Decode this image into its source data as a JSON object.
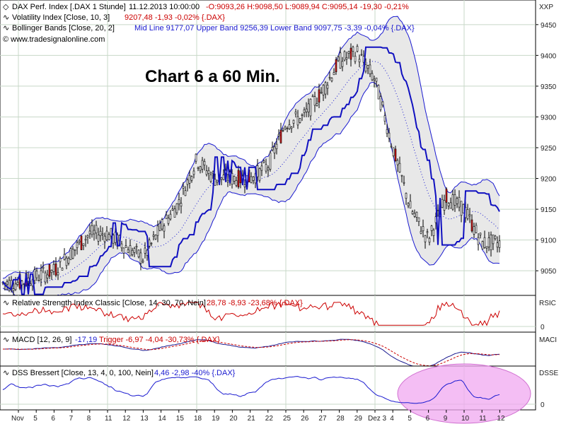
{
  "header": {
    "line1": {
      "icon": "chart-icon",
      "name": "DAX Perf. Index [.DAX  1 Stunde]",
      "datetime": "11.12.2013 10:00:00",
      "ohlc": "-O:9093,26 H:9098,50 L:9089,94 C:9095,14 -19,30 -0,21%"
    },
    "line2": {
      "icon": "indicator-icon",
      "name": "Volatility Index [Close, 10, 3]",
      "values": "9207,48 -1,93 -0,02% {.DAX}"
    },
    "line3": {
      "icon": "indicator-icon",
      "name": "Bollinger Bands [Close, 20, 2]",
      "values": "Mid Line 9177,07 Upper Band 9256,39 Lower Band 9097,75 -3,39 -0,04% {.DAX}"
    },
    "copyright": "© www.tradesignalonline.com",
    "scale_label": "XXP"
  },
  "overlay_title": "Chart 6 a 60 Min.",
  "colors": {
    "background": "#ffffff",
    "grid": "#c8d8c8",
    "band_fill": "#e8e8e8",
    "band_line": "#1a1ad0",
    "vola_line": "#1010c0",
    "candle_up": "#ffffff",
    "candle_down": "#dd1111",
    "rsi_line": "#cc0000",
    "macd_line": "#1a1a90",
    "trigger_line": "#cc0000",
    "dss_line": "#1a1ad0",
    "highlight": "#f0a8f0"
  },
  "chart_data": [
    {
      "panel": "price",
      "type": "candlestick",
      "series": [
        "DAX Perf. Index",
        "Volatility Index",
        "Bollinger Bands"
      ],
      "y_ticks": [
        "9450",
        "9400",
        "9350",
        "9300",
        "9250",
        "9200",
        "9150",
        "9100",
        "9050"
      ],
      "ylim": [
        9010,
        9490
      ],
      "key_values": {
        "open": 9093.26,
        "high": 9098.5,
        "low": 9089.94,
        "close": 9095.14,
        "volatility_index": 9207.48,
        "bb_mid": 9177.07,
        "bb_upper": 9256.39,
        "bb_lower": 9097.75
      },
      "close_path": [
        [
          "Nov",
          9030
        ],
        [
          "5",
          9040
        ],
        [
          "6",
          9050
        ],
        [
          "7",
          9080
        ],
        [
          "8",
          9110
        ],
        [
          "11",
          9110
        ],
        [
          "12",
          9090
        ],
        [
          "13",
          9070
        ],
        [
          "14",
          9120
        ],
        [
          "15",
          9160
        ],
        [
          "18",
          9230
        ],
        [
          "19",
          9200
        ],
        [
          "20",
          9200
        ],
        [
          "21",
          9200
        ],
        [
          "22",
          9220
        ],
        [
          "25",
          9290
        ],
        [
          "26",
          9300
        ],
        [
          "27",
          9340
        ],
        [
          "28",
          9390
        ],
        [
          "29",
          9405
        ],
        [
          "Dez 3",
          9360
        ],
        [
          "4",
          9250
        ],
        [
          "5",
          9150
        ],
        [
          "6",
          9100
        ],
        [
          "9",
          9170
        ],
        [
          "10",
          9150
        ],
        [
          "11",
          9095
        ]
      ]
    },
    {
      "panel": "rsi",
      "type": "line",
      "label": "Relative Strength Index Classic [Close, 14, 30, 70, Nein]",
      "values_text": "28,78 -8,93 -23,68% {.DAX}",
      "scale_label": "RSIC",
      "y_ticks": [
        "0"
      ],
      "current": 28.78
    },
    {
      "panel": "macd",
      "type": "line",
      "label": "MACD [12, 26, 9]",
      "values_text": "-17,19",
      "trigger_text": "Trigger -6,97 -4,04 -30,73% {.DAX}",
      "scale_label": "MACI",
      "y_ticks": [
        "0"
      ],
      "macd": -17.19,
      "trigger": -6.97
    },
    {
      "panel": "dss",
      "type": "line",
      "label": "DSS Bressert [Close, 13, 4, 0, 100, Nein]",
      "values_text": "4,46 -2,98 -40% {.DAX}",
      "scale_label": "DSSE",
      "y_ticks": [
        "0"
      ],
      "current": 4.46
    }
  ],
  "x_axis": {
    "ticks": [
      "Nov",
      "5",
      "6",
      "7",
      "8",
      "11",
      "12",
      "13",
      "14",
      "15",
      "18",
      "19",
      "20",
      "21",
      "22",
      "25",
      "26",
      "27",
      "28",
      "29",
      "Dez 3",
      "4",
      "5",
      "6",
      "9",
      "10",
      "11",
      "12"
    ]
  }
}
